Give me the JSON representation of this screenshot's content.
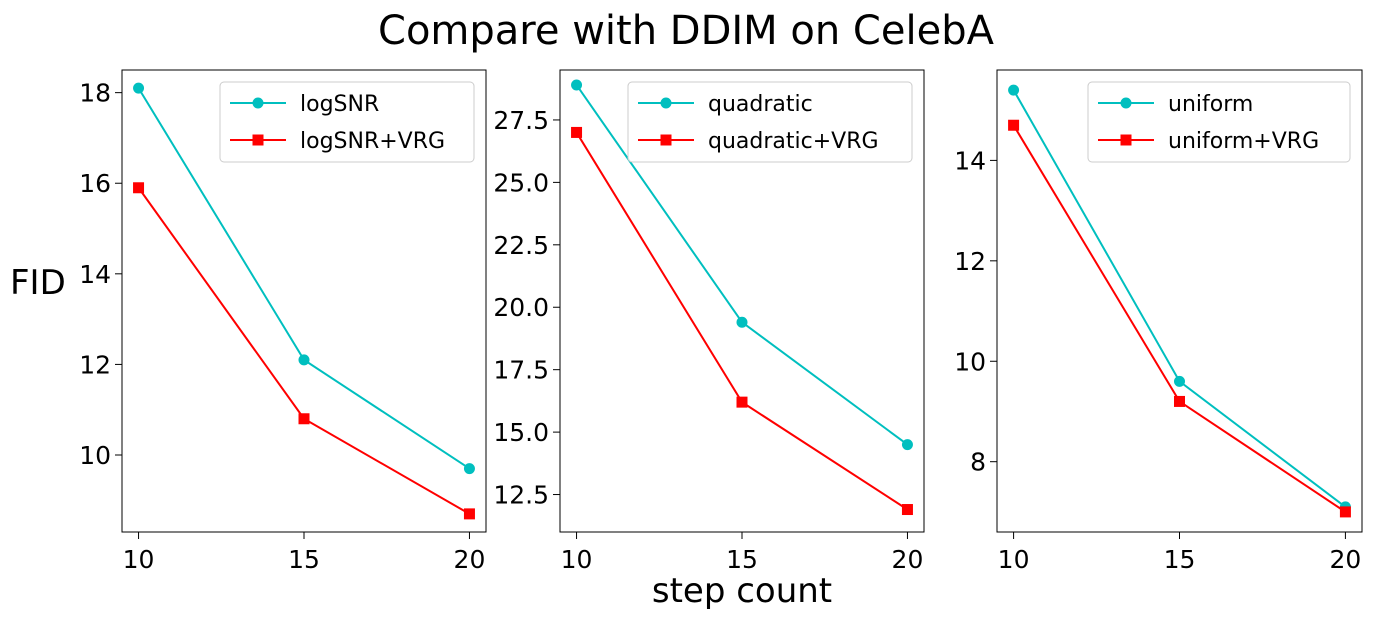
{
  "figure": {
    "title": "Compare with DDIM on CelebA",
    "xlabel": "step count",
    "ylabel": "FID"
  },
  "chart_data": [
    {
      "type": "line",
      "title": "",
      "x": [
        10,
        15,
        20
      ],
      "xticks": [
        "10",
        "15",
        "20"
      ],
      "xlim": [
        9.5,
        20.5
      ],
      "ylim": [
        8.3,
        18.5
      ],
      "yticks": [
        "10",
        "12",
        "14",
        "16",
        "18"
      ],
      "ytick_values": [
        10,
        12,
        14,
        16,
        18
      ],
      "legend_position": "top-right",
      "grid": false,
      "series": [
        {
          "name": "logSNR",
          "values": [
            18.1,
            12.1,
            9.7
          ],
          "color": "#00bfbf",
          "marker": "circle"
        },
        {
          "name": "logSNR+VRG",
          "values": [
            15.9,
            10.8,
            8.7
          ],
          "color": "#ff0000",
          "marker": "square"
        }
      ]
    },
    {
      "type": "line",
      "title": "",
      "x": [
        10,
        15,
        20
      ],
      "xticks": [
        "10",
        "15",
        "20"
      ],
      "xlim": [
        9.5,
        20.5
      ],
      "ylim": [
        11.0,
        29.5
      ],
      "yticks": [
        "12.5",
        "15.0",
        "17.5",
        "20.0",
        "22.5",
        "25.0",
        "27.5"
      ],
      "ytick_values": [
        12.5,
        15.0,
        17.5,
        20.0,
        22.5,
        25.0,
        27.5
      ],
      "legend_position": "top-right",
      "grid": false,
      "series": [
        {
          "name": "quadratic",
          "values": [
            28.9,
            19.4,
            14.5
          ],
          "color": "#00bfbf",
          "marker": "circle"
        },
        {
          "name": "quadratic+VRG",
          "values": [
            27.0,
            16.2,
            11.9
          ],
          "color": "#ff0000",
          "marker": "square"
        }
      ]
    },
    {
      "type": "line",
      "title": "",
      "x": [
        10,
        15,
        20
      ],
      "xticks": [
        "10",
        "15",
        "20"
      ],
      "xlim": [
        9.5,
        20.5
      ],
      "ylim": [
        6.6,
        15.8
      ],
      "yticks": [
        "8",
        "10",
        "12",
        "14"
      ],
      "ytick_values": [
        8,
        10,
        12,
        14
      ],
      "legend_position": "top-right",
      "grid": false,
      "series": [
        {
          "name": "uniform",
          "values": [
            15.4,
            9.6,
            7.1
          ],
          "color": "#00bfbf",
          "marker": "circle"
        },
        {
          "name": "uniform+VRG",
          "values": [
            14.7,
            9.2,
            7.0
          ],
          "color": "#ff0000",
          "marker": "square"
        }
      ]
    }
  ]
}
